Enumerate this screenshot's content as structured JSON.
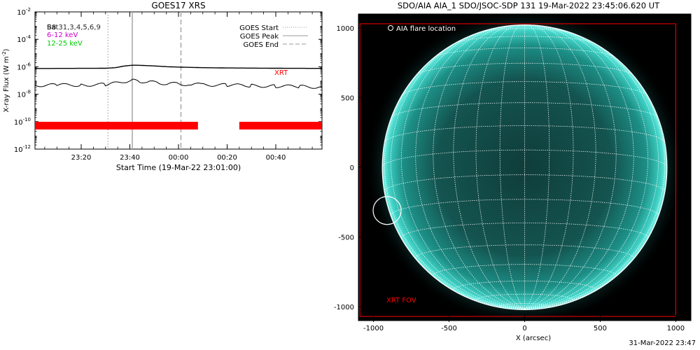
{
  "chart_data": [
    {
      "type": "line",
      "title": "GOES17 XRS",
      "xlabel": "Start Time (19-Mar-22 23:01:00)",
      "ylabel_main": "X-ray Flux (W m",
      "ylabel_exp": "-2",
      "ylabel_tail": ")",
      "yscale": "log",
      "ylim": [
        1e-12,
        0.01
      ],
      "ytick_values": [
        -12,
        -10,
        -8,
        -6,
        -4,
        -2
      ],
      "ytick_labels": [
        "-12",
        "-10",
        "-8",
        "-6",
        "-4",
        "-2"
      ],
      "ytick_base": "10",
      "xlim": [
        "23:01",
        "00:59"
      ],
      "xtick_values": [
        "23:20",
        "23:40",
        "00:00",
        "00:20",
        "00:40"
      ],
      "xtick_labels": [
        "23:20",
        "23:40",
        "00:00",
        "00:20",
        "00:40"
      ],
      "info_lines": [
        {
          "text": "B8",
          "color": "#000000"
        },
        {
          "text": "Sat31,3,4,5,6,9",
          "color": "#000000"
        },
        {
          "text": "6-12 keV",
          "color": "#cc00cc"
        },
        {
          "text": "12-25 keV",
          "color": "#00cc00"
        }
      ],
      "legend": [
        {
          "label": "GOES Start",
          "style": "dotted"
        },
        {
          "label": "GOES Peak",
          "style": "solid"
        },
        {
          "label": "GOES End",
          "style": "dashed"
        }
      ],
      "legend_position": "top-right",
      "event_times": {
        "start": "23:31",
        "peak": "23:41",
        "end": "00:01"
      },
      "series": [
        {
          "x": [
            "23:01",
            "23:10",
            "23:20",
            "23:30",
            "23:34",
            "23:38",
            "23:41",
            "23:44",
            "23:48",
            "23:52",
            "23:56",
            "00:00",
            "00:05",
            "00:10",
            "00:20",
            "00:30",
            "00:40",
            "00:50",
            "00:59"
          ],
          "values": [
            7.5e-07,
            7.6e-07,
            7.7e-07,
            7.8e-07,
            8.6e-07,
            1.15e-06,
            1.3e-06,
            1.28e-06,
            1.2e-06,
            1.1e-06,
            1e-06,
            9.5e-07,
            9e-07,
            8.6e-07,
            8.2e-07,
            8e-07,
            7.8e-07,
            7.7e-07,
            7.6e-07
          ]
        },
        {
          "x": [
            "23:01",
            "23:10",
            "23:20",
            "23:30",
            "23:34",
            "23:38",
            "23:41",
            "23:44",
            "23:48",
            "23:52",
            "23:56",
            "00:00",
            "00:05",
            "00:10",
            "00:20",
            "00:30",
            "00:40",
            "00:50",
            "00:59"
          ],
          "values": [
            4.5e-08,
            4.6e-08,
            4.8e-08,
            5e-08,
            6.2e-08,
            8.8e-08,
            9.8e-08,
            9e-08,
            7.6e-08,
            6.6e-08,
            6e-08,
            5.6e-08,
            5.2e-08,
            5e-08,
            4.6e-08,
            4.2e-08,
            3.9e-08,
            3.6e-08,
            3.3e-08
          ]
        }
      ],
      "xrt_label": "XRT",
      "xrt_coverage": [
        [
          "23:01",
          "00:08"
        ],
        [
          "00:25",
          "00:59"
        ]
      ],
      "colors": {
        "data": "#000000",
        "event_lines": "#aaaaaa",
        "xrt": "#ff0000"
      }
    },
    {
      "type": "scatter",
      "title": "SDO/AIA AIA_1 SDO/JSOC-SDP 131 19-Mar-2022 23:45:06.620 UT",
      "xlabel": "X (arcsec)",
      "ylabel": "",
      "xlim": [
        -1100,
        1100
      ],
      "ylim": [
        -1100,
        1100
      ],
      "xtick_values": [
        -1000,
        -500,
        0,
        500,
        1000
      ],
      "xtick_labels": [
        "-1000",
        "-500",
        "0",
        "500",
        "1000"
      ],
      "ytick_values": [
        -1000,
        -500,
        0,
        500,
        1000
      ],
      "ytick_labels": [
        "-1000",
        "-500",
        "0",
        "500",
        "1000"
      ],
      "solar_radius": 980,
      "flare_location": {
        "x": -910,
        "y": -310
      },
      "flare_legend": "AIA flare location",
      "xrt_fov_label": "XRT FOV",
      "xrt_fov": {
        "x0": -1090,
        "x1": 1000,
        "y0": -1070,
        "y1": 1030
      },
      "colors": {
        "background": "#000000",
        "disk": "#1fa39a",
        "grid": "#ffffff",
        "fov": "#ff0000"
      }
    }
  ],
  "footer_text": "31-Mar-2022 23:47"
}
